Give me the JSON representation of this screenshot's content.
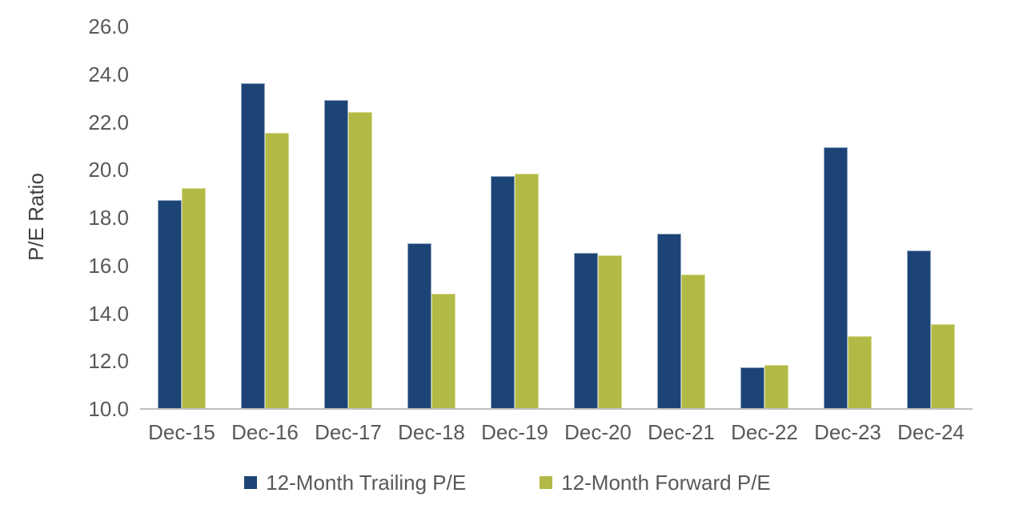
{
  "chart_data": {
    "type": "bar",
    "title": "",
    "ylabel": "P/E Ratio",
    "xlabel": "",
    "categories": [
      "Dec-15",
      "Dec-16",
      "Dec-17",
      "Dec-18",
      "Dec-19",
      "Dec-20",
      "Dec-21",
      "Dec-22",
      "Dec-23",
      "Dec-24"
    ],
    "series": [
      {
        "name": "12-Month Trailing P/E",
        "short_name": "trailing",
        "color": "#1D4476",
        "edge_color": "#8FA6C0",
        "values": [
          18.7,
          23.6,
          22.9,
          16.9,
          19.7,
          16.5,
          17.3,
          11.7,
          20.9,
          16.6
        ]
      },
      {
        "name": "12-Month Forward P/E",
        "short_name": "forward",
        "color": "#B2BA45",
        "edge_color": "#D6DB92",
        "values": [
          19.2,
          21.5,
          22.4,
          14.8,
          19.8,
          16.4,
          15.6,
          11.8,
          13.0,
          13.5
        ]
      }
    ],
    "ylim": [
      10.0,
      26.0
    ],
    "ytick_step": 2.0,
    "ytick_labels": [
      "10.0",
      "12.0",
      "14.0",
      "16.0",
      "18.0",
      "20.0",
      "22.0",
      "24.0",
      "26.0"
    ],
    "grid": false,
    "legend_position": "bottom",
    "axis_line_color": "#BFBFBF",
    "tick_label_color": "#595959",
    "axis_title_color": "#404040"
  }
}
